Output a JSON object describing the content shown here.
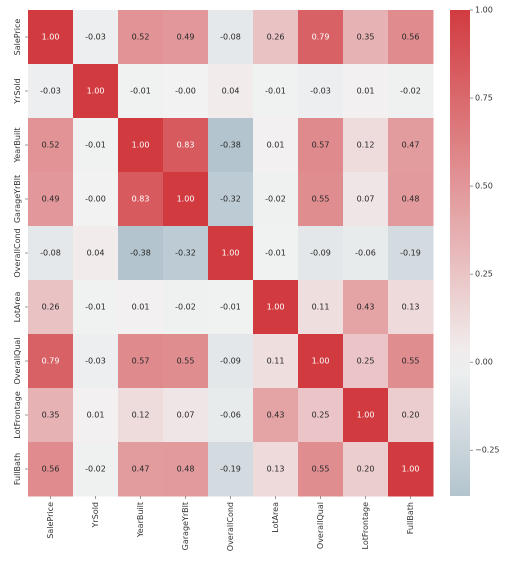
{
  "chart_data": {
    "type": "heatmap",
    "title": "",
    "xlabel": "",
    "ylabel": "",
    "row_labels": [
      "SalePrice",
      "YrSold",
      "YearBuilt",
      "GarageYrBlt",
      "OverallCond",
      "LotArea",
      "OverallQual",
      "LotFrontage",
      "FullBath"
    ],
    "col_labels": [
      "SalePrice",
      "YrSold",
      "YearBuilt",
      "GarageYrBlt",
      "OverallCond",
      "LotArea",
      "OverallQual",
      "LotFrontage",
      "FullBath"
    ],
    "values": [
      [
        1.0,
        -0.03,
        0.52,
        0.49,
        -0.08,
        0.26,
        0.79,
        0.35,
        0.56
      ],
      [
        -0.03,
        1.0,
        -0.01,
        -0.0,
        0.04,
        -0.01,
        -0.03,
        0.01,
        -0.02
      ],
      [
        0.52,
        -0.01,
        1.0,
        0.83,
        -0.38,
        0.01,
        0.57,
        0.12,
        0.47
      ],
      [
        0.49,
        -0.0,
        0.83,
        1.0,
        -0.32,
        -0.02,
        0.55,
        0.07,
        0.48
      ],
      [
        -0.08,
        0.04,
        -0.38,
        -0.32,
        1.0,
        -0.01,
        -0.09,
        -0.06,
        -0.19
      ],
      [
        0.26,
        -0.01,
        0.01,
        -0.02,
        -0.01,
        1.0,
        0.11,
        0.43,
        0.13
      ],
      [
        0.79,
        -0.03,
        0.57,
        0.55,
        -0.09,
        0.11,
        1.0,
        0.25,
        0.55
      ],
      [
        0.35,
        0.01,
        0.12,
        0.07,
        -0.06,
        0.43,
        0.25,
        1.0,
        0.2
      ],
      [
        0.56,
        -0.02,
        0.47,
        0.48,
        -0.19,
        0.13,
        0.55,
        0.2,
        1.0
      ]
    ],
    "value_labels": [
      [
        "1.00",
        "-0.03",
        "0.52",
        "0.49",
        "-0.08",
        "0.26",
        "0.79",
        "0.35",
        "0.56"
      ],
      [
        "-0.03",
        "1.00",
        "-0.01",
        "-0.00",
        "0.04",
        "-0.01",
        "-0.03",
        "0.01",
        "-0.02"
      ],
      [
        "0.52",
        "-0.01",
        "1.00",
        "0.83",
        "-0.38",
        "0.01",
        "0.57",
        "0.12",
        "0.47"
      ],
      [
        "0.49",
        "-0.00",
        "0.83",
        "1.00",
        "-0.32",
        "-0.02",
        "0.55",
        "0.07",
        "0.48"
      ],
      [
        "-0.08",
        "0.04",
        "-0.38",
        "-0.32",
        "1.00",
        "-0.01",
        "-0.09",
        "-0.06",
        "-0.19"
      ],
      [
        "0.26",
        "-0.01",
        "0.01",
        "-0.02",
        "-0.01",
        "1.00",
        "0.11",
        "0.43",
        "0.13"
      ],
      [
        "0.79",
        "-0.03",
        "0.57",
        "0.55",
        "-0.09",
        "0.11",
        "1.00",
        "0.25",
        "0.55"
      ],
      [
        "0.35",
        "0.01",
        "0.12",
        "0.07",
        "-0.06",
        "0.43",
        "0.25",
        "1.00",
        "0.20"
      ],
      [
        "0.56",
        "-0.02",
        "0.47",
        "0.48",
        "-0.19",
        "0.13",
        "0.55",
        "0.20",
        "1.00"
      ]
    ],
    "colorbar": {
      "range": [
        -0.38,
        1.0
      ],
      "ticks": [
        -0.25,
        0.0,
        0.25,
        0.5,
        0.75,
        1.0
      ],
      "tick_labels": [
        "−0.25",
        "0.00",
        "0.25",
        "0.50",
        "0.75",
        "1.00"
      ],
      "low_color": "#4d7a93",
      "mid_color": "#f2f2f2",
      "high_color": "#d13b40"
    },
    "annotation_dark_text_color": "#262626",
    "annotation_light_text_color": "#ffffff",
    "grid": false,
    "legend": "colorbar-right"
  }
}
